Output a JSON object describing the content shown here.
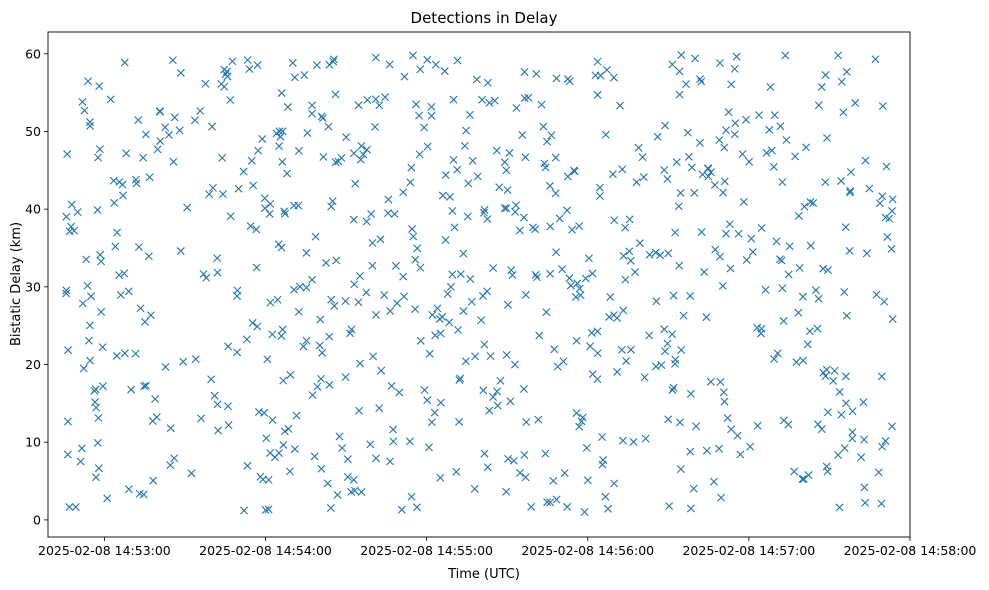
{
  "chart_data": {
    "type": "scatter",
    "title": "Detections in Delay",
    "xlabel": "Time (UTC)",
    "ylabel": "Bistatic Delay (km)",
    "x_ticks": [
      "2025-02-08 14:53:00",
      "2025-02-08 14:54:00",
      "2025-02-08 14:55:00",
      "2025-02-08 14:56:00",
      "2025-02-08 14:57:00",
      "2025-02-08 14:58:00"
    ],
    "y_ticks": [
      "0",
      "10",
      "20",
      "30",
      "40",
      "50",
      "60"
    ],
    "xlim": [
      "2025-02-08 14:52:39",
      "2025-02-08 14:58:00"
    ],
    "ylim": [
      -2.2,
      62.8
    ],
    "x_range_detections": [
      "2025-02-08 14:52:44",
      "2025-02-08 14:57:54"
    ],
    "y_range_detections": [
      0.9,
      59.9
    ],
    "num_detections": 760,
    "marker": "x",
    "marker_color": "#1f77b4",
    "grid": false,
    "legend": "none"
  }
}
